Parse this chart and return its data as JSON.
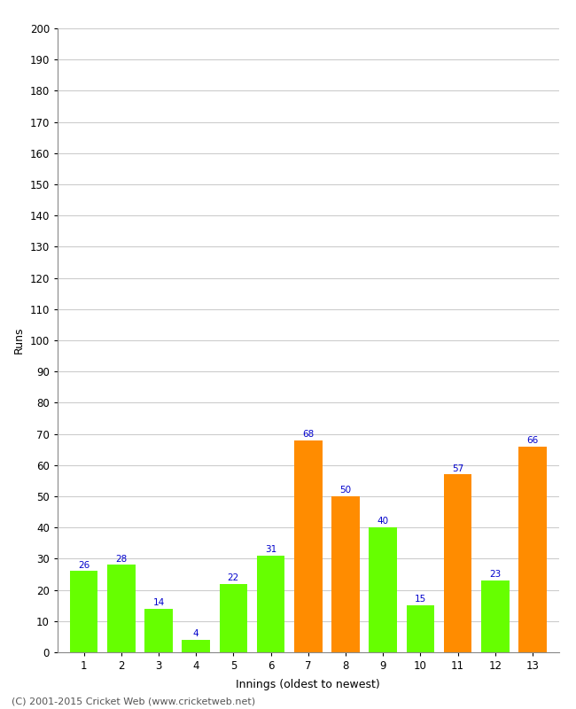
{
  "innings": [
    1,
    2,
    3,
    4,
    5,
    6,
    7,
    8,
    9,
    10,
    11,
    12,
    13
  ],
  "values": [
    26,
    28,
    14,
    4,
    22,
    31,
    68,
    50,
    40,
    15,
    57,
    23,
    66
  ],
  "colors": [
    "#66ff00",
    "#66ff00",
    "#66ff00",
    "#66ff00",
    "#66ff00",
    "#66ff00",
    "#ff8c00",
    "#ff8c00",
    "#66ff00",
    "#66ff00",
    "#ff8c00",
    "#66ff00",
    "#ff8c00"
  ],
  "ylabel": "Runs",
  "xlabel": "Innings (oldest to newest)",
  "ylim": [
    0,
    200
  ],
  "ytick_min": 0,
  "ytick_max": 200,
  "ytick_step": 10,
  "label_color": "#0000cc",
  "label_fontsize": 7.5,
  "footer": "(C) 2001-2015 Cricket Web (www.cricketweb.net)",
  "background_color": "#ffffff",
  "grid_color": "#cccccc",
  "bar_width": 0.75,
  "fig_width": 6.5,
  "fig_height": 8.0,
  "dpi": 100
}
